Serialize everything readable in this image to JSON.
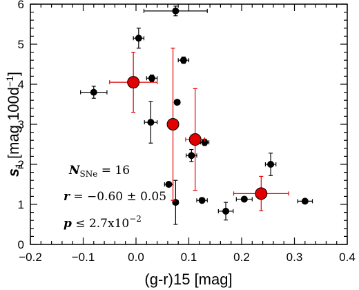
{
  "chart_data": {
    "type": "scatter",
    "xlabel": "(g-r)15 [mag]",
    "ylabel": {
      "symbol": "s",
      "subscript": "1",
      "unit": " [mag 100d",
      "sup": "−1",
      "close": "]"
    },
    "xlim": [
      -0.2,
      0.4
    ],
    "ylim": [
      0,
      6
    ],
    "xticks": [
      "−0.2",
      "−0.1",
      "0.0",
      "0.1",
      "0.2",
      "0.3",
      "0.4"
    ],
    "yticks": [
      "0",
      "1",
      "2",
      "3",
      "4",
      "5",
      "6"
    ],
    "grid": false,
    "annotations": {
      "n_label": "N",
      "n_sub": "SNe",
      "n_value": " = 16",
      "r_label": "r",
      "r_value": " = −0.60 ± 0.05",
      "p_label": "p",
      "p_value": " ≤ 2.7x10",
      "p_exp": "−2"
    },
    "series": [
      {
        "color": "#000000",
        "points": [
          {
            "x": 0.075,
            "y": 5.83,
            "xerr": 0.06,
            "yerr": 0.12
          },
          {
            "x": 0.005,
            "y": 5.15,
            "xerr": 0.01,
            "yerr": 0.25
          },
          {
            "x": 0.09,
            "y": 4.6,
            "xerr": 0.01,
            "yerr": 0.08
          },
          {
            "x": 0.03,
            "y": 4.15,
            "xerr": 0.01,
            "yerr": 0.08
          },
          {
            "x": -0.08,
            "y": 3.8,
            "xerr": 0.025,
            "yerr": 0.15
          },
          {
            "x": 0.078,
            "y": 3.55,
            "xerr": 0.005,
            "yerr": 0.05
          },
          {
            "x": 0.028,
            "y": 3.05,
            "xerr": 0.012,
            "yerr": 0.52
          },
          {
            "x": 0.13,
            "y": 2.55,
            "xerr": 0.008,
            "yerr": 0.08
          },
          {
            "x": 0.105,
            "y": 2.22,
            "xerr": 0.01,
            "yerr": 0.15
          },
          {
            "x": 0.255,
            "y": 2.0,
            "xerr": 0.01,
            "yerr": 0.28
          },
          {
            "x": 0.062,
            "y": 1.5,
            "xerr": 0.008,
            "yerr": 0.02
          },
          {
            "x": 0.125,
            "y": 1.1,
            "xerr": 0.01,
            "yerr": 0.02
          },
          {
            "x": 0.205,
            "y": 1.13,
            "xerr": 0.015,
            "yerr": 0.02
          },
          {
            "x": 0.32,
            "y": 1.08,
            "xerr": 0.014,
            "yerr": 0.02
          },
          {
            "x": 0.075,
            "y": 1.05,
            "xerr": 0.005,
            "yerr": 0.55
          },
          {
            "x": 0.17,
            "y": 0.83,
            "xerr": 0.014,
            "yerr": 0.22
          }
        ]
      },
      {
        "color": "#e00000",
        "points": [
          {
            "x": -0.005,
            "y": 4.05,
            "xerr": 0.045,
            "yerr": 0.75
          },
          {
            "x": 0.07,
            "y": 3.0,
            "xerr": 0.008,
            "yerr": 1.9
          },
          {
            "x": 0.112,
            "y": 2.62,
            "xerr": 0.018,
            "yerr": 1.27
          },
          {
            "x": 0.237,
            "y": 1.27,
            "xerr": 0.052,
            "yerr": 0.43
          }
        ]
      }
    ]
  }
}
